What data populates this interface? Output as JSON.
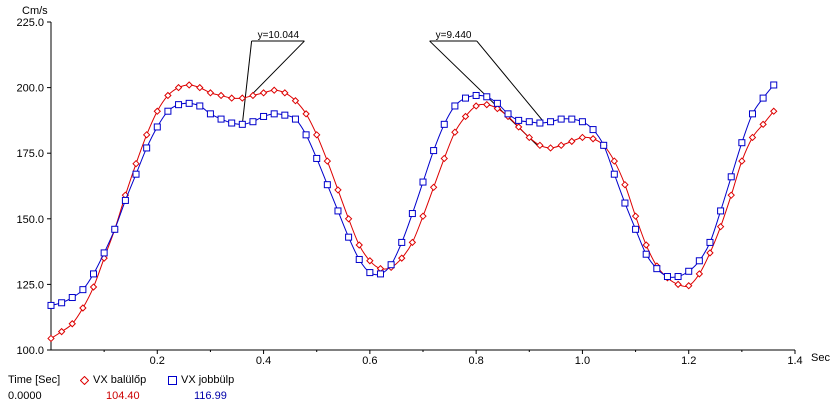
{
  "chart_data": {
    "type": "line",
    "xunit": "Sec",
    "yunit": "Cm/s",
    "xlim": [
      0,
      1.4
    ],
    "ylim": [
      100,
      225
    ],
    "xticks": [
      0.2,
      0.4,
      0.6,
      0.8,
      1.0,
      1.2,
      1.4
    ],
    "xtick_labels": [
      "0.2",
      "0.4",
      "0.6",
      "0.8",
      "1.0",
      "1.2",
      "1.4"
    ],
    "yticks": [
      100,
      125,
      150,
      175,
      200,
      225
    ],
    "ytick_labels": [
      "100.0",
      "125.0",
      "150.0",
      "175.0",
      "200.0",
      "225.0"
    ],
    "grid": false,
    "series": [
      {
        "name": "VX balülőp",
        "color": "#dd0000",
        "marker": "diamond",
        "x": [
          0.0,
          0.02,
          0.04,
          0.06,
          0.08,
          0.1,
          0.12,
          0.14,
          0.16,
          0.18,
          0.2,
          0.22,
          0.24,
          0.26,
          0.28,
          0.3,
          0.32,
          0.34,
          0.36,
          0.38,
          0.4,
          0.42,
          0.44,
          0.46,
          0.48,
          0.5,
          0.52,
          0.54,
          0.56,
          0.58,
          0.6,
          0.62,
          0.64,
          0.66,
          0.68,
          0.7,
          0.72,
          0.74,
          0.76,
          0.78,
          0.8,
          0.82,
          0.84,
          0.86,
          0.88,
          0.9,
          0.92,
          0.94,
          0.96,
          0.98,
          1.0,
          1.02,
          1.04,
          1.06,
          1.08,
          1.1,
          1.12,
          1.14,
          1.16,
          1.18,
          1.2,
          1.22,
          1.24,
          1.26,
          1.28,
          1.3,
          1.32,
          1.34,
          1.36
        ],
        "y": [
          104.4,
          107.0,
          110.0,
          116.0,
          124.0,
          135.0,
          146.0,
          159.0,
          171.0,
          182.0,
          191.0,
          197.0,
          200.0,
          201.0,
          200.0,
          198.0,
          197.0,
          196.0,
          196.0,
          197.0,
          198.0,
          199.0,
          198.0,
          195.0,
          190.0,
          182.0,
          172.0,
          161.0,
          150.0,
          140.0,
          134.0,
          131.0,
          131.5,
          135.0,
          141.0,
          151.0,
          162.0,
          173.0,
          183.0,
          189.0,
          193.0,
          193.5,
          192.0,
          189.0,
          185.0,
          181.0,
          178.0,
          177.0,
          178.0,
          179.5,
          181.0,
          180.5,
          178.0,
          172.0,
          163.0,
          151.0,
          140.0,
          132.0,
          127.5,
          125.0,
          124.5,
          129.0,
          137.0,
          147.0,
          159.0,
          172.0,
          181.0,
          186.0,
          191.0
        ]
      },
      {
        "name": "VX jobbülp",
        "color": "#0000cc",
        "marker": "square",
        "x": [
          0.0,
          0.02,
          0.04,
          0.06,
          0.08,
          0.1,
          0.12,
          0.14,
          0.16,
          0.18,
          0.2,
          0.22,
          0.24,
          0.26,
          0.28,
          0.3,
          0.32,
          0.34,
          0.36,
          0.38,
          0.4,
          0.42,
          0.44,
          0.46,
          0.48,
          0.5,
          0.52,
          0.54,
          0.56,
          0.58,
          0.6,
          0.62,
          0.64,
          0.66,
          0.68,
          0.7,
          0.72,
          0.74,
          0.76,
          0.78,
          0.8,
          0.82,
          0.84,
          0.86,
          0.88,
          0.9,
          0.92,
          0.94,
          0.96,
          0.98,
          1.0,
          1.02,
          1.04,
          1.06,
          1.08,
          1.1,
          1.12,
          1.14,
          1.16,
          1.18,
          1.2,
          1.22,
          1.24,
          1.26,
          1.28,
          1.3,
          1.32,
          1.34,
          1.36
        ],
        "y": [
          116.99,
          118.0,
          120.0,
          123.0,
          129.0,
          137.0,
          146.0,
          157.0,
          167.0,
          177.0,
          185.0,
          191.0,
          193.5,
          194.0,
          193.0,
          190.0,
          188.0,
          186.5,
          186.0,
          187.0,
          189.0,
          190.0,
          189.5,
          188.0,
          182.0,
          173.0,
          163.0,
          153.0,
          143.0,
          134.5,
          129.5,
          129.0,
          132.5,
          141.0,
          152.0,
          164.0,
          176.0,
          186.0,
          193.0,
          196.0,
          197.0,
          196.5,
          194.0,
          190.0,
          187.5,
          187.0,
          186.5,
          187.0,
          188.0,
          188.0,
          187.0,
          184.0,
          178.0,
          167.0,
          156.0,
          146.0,
          136.5,
          131.0,
          128.0,
          128.0,
          130.0,
          134.0,
          141.0,
          153.0,
          166.0,
          179.0,
          190.0,
          196.0,
          201.0
        ]
      }
    ],
    "annotations": [
      {
        "text": "y=10.044",
        "label_x": 0.385,
        "label_y": 218.5,
        "x": 0.36,
        "y_top": 196.0,
        "y_bottom": 186.0
      },
      {
        "text": "y=9.440",
        "label_x": 0.72,
        "label_y": 218.5,
        "x": 0.92,
        "y_top": 187.0,
        "y_bottom": 177.0
      }
    ]
  },
  "legend": {
    "time_header": "Time [Sec]",
    "time_value": "0.0000",
    "series1_label": "VX balülőp",
    "series1_value": "104.40",
    "series2_label": "VX jobbülp",
    "series2_value": "116.99"
  }
}
